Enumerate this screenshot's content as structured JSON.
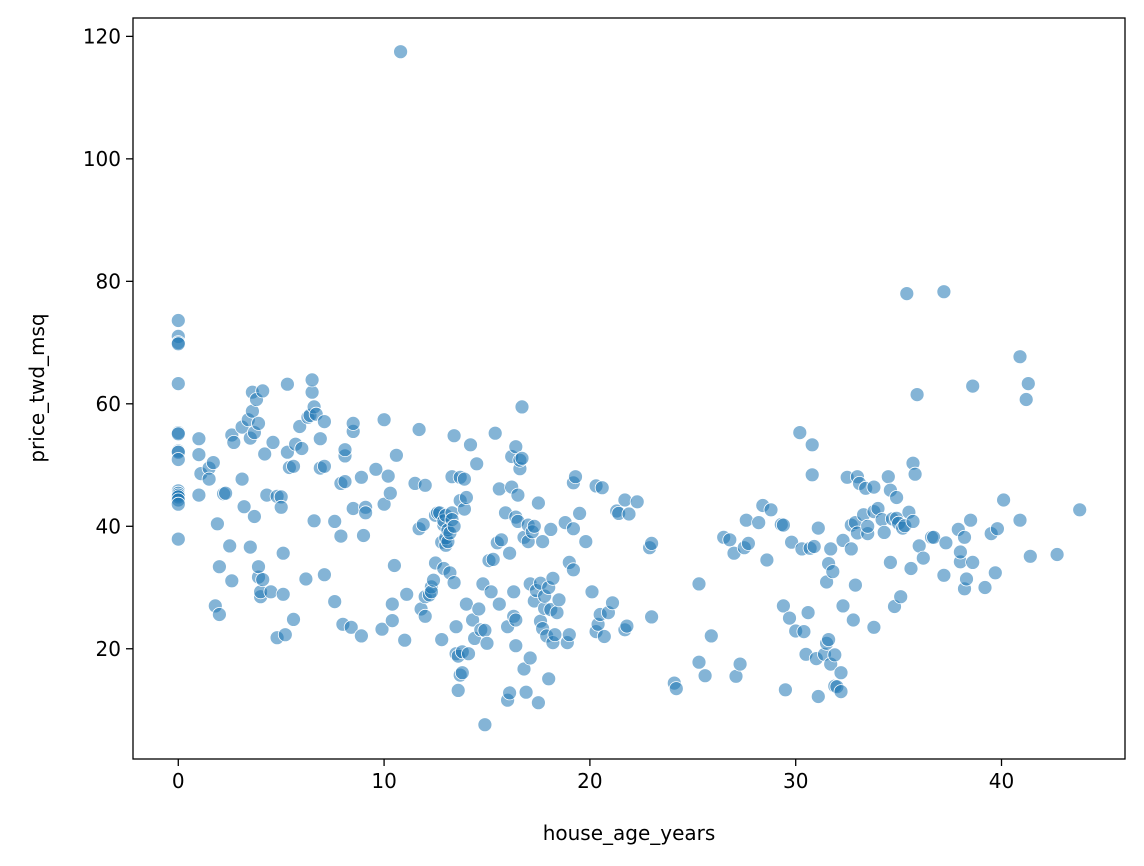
{
  "chart_data": {
    "type": "scatter",
    "title": "",
    "xlabel": "house_age_years",
    "ylabel": "price_twd_msq",
    "xlim": [
      -2.2,
      46.0
    ],
    "ylim": [
      2.0,
      123.0
    ],
    "xticks": [
      0,
      10,
      20,
      30,
      40
    ],
    "yticks": [
      20,
      40,
      60,
      80,
      100,
      120
    ],
    "grid": false,
    "legend": "none",
    "point_color": "#1f77b4",
    "point_alpha": 0.55,
    "point_edge_color": "#ffffff",
    "points": [
      [
        0,
        73.6
      ],
      [
        0,
        71.0
      ],
      [
        0,
        70.0
      ],
      [
        0,
        69.8
      ],
      [
        0,
        63.3
      ],
      [
        0,
        55.3
      ],
      [
        0,
        55.1
      ],
      [
        0,
        52.3
      ],
      [
        0,
        52.1
      ],
      [
        0,
        50.9
      ],
      [
        0,
        45.8
      ],
      [
        0,
        45.4
      ],
      [
        0,
        45.1
      ],
      [
        0,
        44.8
      ],
      [
        0,
        44.3
      ],
      [
        0,
        43.6
      ],
      [
        0,
        37.9
      ],
      [
        10.8,
        117.5
      ],
      [
        35.4,
        78.0
      ],
      [
        37.2,
        78.3
      ],
      [
        40.9,
        67.7
      ],
      [
        41.3,
        63.3
      ],
      [
        41.2,
        60.7
      ],
      [
        38.6,
        62.9
      ],
      [
        35.9,
        61.5
      ],
      [
        35.7,
        50.3
      ],
      [
        35.8,
        48.5
      ],
      [
        1.0,
        54.3
      ],
      [
        1.0,
        51.7
      ],
      [
        1.1,
        48.6
      ],
      [
        1.0,
        45.1
      ],
      [
        1.5,
        49.5
      ],
      [
        1.5,
        47.7
      ],
      [
        1.7,
        50.4
      ],
      [
        1.8,
        27.0
      ],
      [
        1.9,
        40.4
      ],
      [
        2.0,
        33.4
      ],
      [
        2.0,
        25.6
      ],
      [
        2.2,
        45.3
      ],
      [
        2.3,
        45.4
      ],
      [
        2.5,
        36.8
      ],
      [
        2.6,
        31.1
      ],
      [
        2.6,
        54.9
      ],
      [
        2.7,
        53.7
      ],
      [
        3.1,
        47.7
      ],
      [
        3.1,
        56.2
      ],
      [
        3.2,
        43.2
      ],
      [
        3.4,
        57.4
      ],
      [
        3.5,
        54.4
      ],
      [
        3.5,
        36.6
      ],
      [
        3.6,
        58.8
      ],
      [
        3.6,
        61.9
      ],
      [
        3.7,
        41.6
      ],
      [
        3.7,
        55.3
      ],
      [
        3.8,
        60.7
      ],
      [
        3.9,
        56.8
      ],
      [
        3.9,
        31.7
      ],
      [
        3.9,
        33.4
      ],
      [
        4.0,
        28.5
      ],
      [
        4.0,
        29.3
      ],
      [
        4.1,
        31.3
      ],
      [
        4.1,
        62.1
      ],
      [
        4.2,
        51.8
      ],
      [
        4.3,
        45.1
      ],
      [
        4.5,
        29.3
      ],
      [
        4.6,
        53.7
      ],
      [
        4.8,
        44.9
      ],
      [
        4.8,
        21.8
      ],
      [
        5.0,
        44.8
      ],
      [
        5.0,
        43.1
      ],
      [
        5.1,
        28.9
      ],
      [
        5.1,
        35.6
      ],
      [
        5.2,
        22.3
      ],
      [
        5.3,
        63.2
      ],
      [
        5.3,
        52.1
      ],
      [
        5.4,
        49.6
      ],
      [
        5.6,
        49.8
      ],
      [
        5.6,
        24.8
      ],
      [
        5.7,
        53.4
      ],
      [
        5.9,
        56.3
      ],
      [
        6.0,
        52.7
      ],
      [
        6.2,
        31.4
      ],
      [
        6.3,
        57.8
      ],
      [
        6.4,
        58.1
      ],
      [
        6.5,
        61.9
      ],
      [
        6.5,
        63.9
      ],
      [
        6.6,
        40.9
      ],
      [
        6.6,
        59.5
      ],
      [
        6.7,
        58.3
      ],
      [
        6.9,
        49.5
      ],
      [
        6.9,
        54.3
      ],
      [
        7.1,
        57.1
      ],
      [
        7.1,
        49.8
      ],
      [
        7.1,
        32.1
      ],
      [
        7.6,
        40.8
      ],
      [
        7.6,
        27.7
      ],
      [
        7.9,
        38.4
      ],
      [
        7.9,
        47.0
      ],
      [
        8.0,
        24.0
      ],
      [
        8.1,
        47.3
      ],
      [
        8.1,
        51.5
      ],
      [
        8.1,
        52.5
      ],
      [
        8.4,
        23.5
      ],
      [
        8.5,
        55.5
      ],
      [
        8.5,
        56.8
      ],
      [
        8.5,
        42.9
      ],
      [
        8.9,
        22.1
      ],
      [
        8.9,
        48.0
      ],
      [
        9.0,
        38.5
      ],
      [
        9.1,
        43.1
      ],
      [
        9.1,
        42.2
      ],
      [
        9.6,
        49.3
      ],
      [
        9.9,
        23.2
      ],
      [
        10.0,
        57.4
      ],
      [
        10.0,
        43.6
      ],
      [
        10.2,
        48.2
      ],
      [
        10.3,
        45.4
      ],
      [
        10.4,
        24.6
      ],
      [
        10.4,
        27.3
      ],
      [
        10.5,
        33.6
      ],
      [
        10.6,
        51.6
      ],
      [
        11.0,
        21.4
      ],
      [
        11.1,
        28.9
      ],
      [
        11.5,
        47.0
      ],
      [
        11.7,
        39.6
      ],
      [
        11.7,
        55.8
      ],
      [
        11.8,
        26.5
      ],
      [
        11.9,
        40.3
      ],
      [
        12.0,
        46.7
      ],
      [
        12.0,
        25.3
      ],
      [
        12.0,
        28.5
      ],
      [
        12.2,
        28.8
      ],
      [
        12.3,
        30.1
      ],
      [
        12.3,
        29.3
      ],
      [
        12.4,
        31.2
      ],
      [
        12.5,
        34.0
      ],
      [
        12.5,
        41.8
      ],
      [
        12.6,
        42.2
      ],
      [
        12.7,
        42.2
      ],
      [
        12.8,
        37.4
      ],
      [
        12.8,
        21.5
      ],
      [
        12.9,
        40.2
      ],
      [
        12.9,
        40.9
      ],
      [
        12.9,
        33.1
      ],
      [
        13.0,
        41.8
      ],
      [
        13.0,
        36.9
      ],
      [
        13.0,
        38.1
      ],
      [
        13.1,
        37.5
      ],
      [
        13.1,
        39.4
      ],
      [
        13.2,
        32.4
      ],
      [
        13.2,
        38.9
      ],
      [
        13.3,
        48.1
      ],
      [
        13.3,
        42.2
      ],
      [
        13.3,
        41.1
      ],
      [
        13.4,
        30.8
      ],
      [
        13.4,
        54.8
      ],
      [
        13.4,
        40.0
      ],
      [
        13.5,
        23.6
      ],
      [
        13.5,
        19.2
      ],
      [
        13.6,
        18.8
      ],
      [
        13.6,
        13.2
      ],
      [
        13.7,
        15.7
      ],
      [
        13.7,
        44.2
      ],
      [
        13.7,
        48.0
      ],
      [
        13.8,
        16.1
      ],
      [
        13.8,
        19.5
      ],
      [
        13.9,
        47.7
      ],
      [
        13.9,
        42.8
      ],
      [
        14.0,
        27.3
      ],
      [
        14.0,
        44.7
      ],
      [
        14.1,
        19.2
      ],
      [
        14.2,
        53.3
      ],
      [
        14.3,
        24.7
      ],
      [
        14.4,
        21.7
      ],
      [
        14.5,
        50.2
      ],
      [
        14.6,
        26.5
      ],
      [
        14.7,
        23.1
      ],
      [
        14.8,
        30.6
      ],
      [
        14.9,
        23.0
      ],
      [
        14.9,
        7.6
      ],
      [
        15.0,
        20.9
      ],
      [
        15.1,
        34.4
      ],
      [
        15.2,
        29.3
      ],
      [
        15.3,
        34.6
      ],
      [
        15.4,
        55.2
      ],
      [
        15.5,
        37.3
      ],
      [
        15.6,
        46.1
      ],
      [
        15.6,
        27.3
      ],
      [
        15.7,
        37.8
      ],
      [
        15.9,
        42.2
      ],
      [
        16.0,
        23.6
      ],
      [
        16.0,
        11.6
      ],
      [
        16.1,
        35.6
      ],
      [
        16.1,
        12.8
      ],
      [
        16.2,
        51.4
      ],
      [
        16.2,
        46.4
      ],
      [
        16.3,
        25.3
      ],
      [
        16.3,
        29.3
      ],
      [
        16.4,
        20.5
      ],
      [
        16.4,
        24.7
      ],
      [
        16.4,
        53.0
      ],
      [
        16.4,
        41.5
      ],
      [
        16.5,
        45.1
      ],
      [
        16.5,
        40.8
      ],
      [
        16.6,
        49.4
      ],
      [
        16.6,
        50.8
      ],
      [
        16.7,
        51.1
      ],
      [
        16.7,
        59.5
      ],
      [
        16.8,
        16.7
      ],
      [
        16.8,
        38.2
      ],
      [
        16.9,
        12.9
      ],
      [
        17.0,
        37.5
      ],
      [
        17.0,
        40.2
      ],
      [
        17.1,
        30.6
      ],
      [
        17.1,
        18.5
      ],
      [
        17.2,
        39.1
      ],
      [
        17.3,
        40.0
      ],
      [
        17.3,
        27.8
      ],
      [
        17.4,
        29.5
      ],
      [
        17.5,
        43.8
      ],
      [
        17.5,
        11.2
      ],
      [
        17.6,
        30.7
      ],
      [
        17.6,
        24.5
      ],
      [
        17.7,
        23.3
      ],
      [
        17.7,
        37.5
      ],
      [
        17.8,
        26.6
      ],
      [
        17.8,
        28.6
      ],
      [
        17.9,
        22.1
      ],
      [
        18.0,
        30.0
      ],
      [
        18.0,
        15.1
      ],
      [
        18.1,
        26.4
      ],
      [
        18.1,
        39.5
      ],
      [
        18.2,
        21.0
      ],
      [
        18.2,
        31.5
      ],
      [
        18.3,
        22.3
      ],
      [
        18.4,
        25.9
      ],
      [
        18.5,
        28.0
      ],
      [
        18.8,
        40.6
      ],
      [
        18.9,
        21.0
      ],
      [
        19.0,
        22.3
      ],
      [
        19.0,
        34.1
      ],
      [
        19.2,
        32.9
      ],
      [
        19.2,
        39.6
      ],
      [
        19.2,
        47.1
      ],
      [
        19.3,
        48.1
      ],
      [
        19.5,
        42.1
      ],
      [
        19.8,
        37.5
      ],
      [
        20.1,
        29.3
      ],
      [
        20.3,
        22.8
      ],
      [
        20.3,
        46.6
      ],
      [
        20.4,
        24.0
      ],
      [
        20.5,
        25.6
      ],
      [
        20.6,
        46.3
      ],
      [
        20.7,
        22.0
      ],
      [
        20.9,
        25.9
      ],
      [
        21.1,
        27.5
      ],
      [
        21.3,
        42.5
      ],
      [
        21.4,
        42.1
      ],
      [
        21.7,
        23.1
      ],
      [
        21.7,
        44.3
      ],
      [
        21.8,
        23.7
      ],
      [
        21.9,
        42.0
      ],
      [
        22.3,
        44.0
      ],
      [
        22.9,
        36.5
      ],
      [
        23.0,
        37.2
      ],
      [
        23.0,
        25.2
      ],
      [
        24.1,
        14.4
      ],
      [
        24.2,
        13.5
      ],
      [
        25.3,
        30.6
      ],
      [
        25.3,
        17.8
      ],
      [
        25.6,
        15.6
      ],
      [
        25.9,
        22.1
      ],
      [
        26.5,
        38.2
      ],
      [
        26.8,
        37.8
      ],
      [
        27.0,
        35.6
      ],
      [
        27.1,
        15.5
      ],
      [
        27.3,
        17.5
      ],
      [
        27.5,
        36.5
      ],
      [
        27.6,
        41.0
      ],
      [
        27.7,
        37.2
      ],
      [
        28.2,
        40.6
      ],
      [
        28.4,
        43.4
      ],
      [
        28.6,
        34.5
      ],
      [
        28.8,
        42.7
      ],
      [
        29.3,
        40.3
      ],
      [
        29.4,
        27.0
      ],
      [
        29.4,
        40.2
      ],
      [
        29.5,
        13.3
      ],
      [
        29.7,
        25.0
      ],
      [
        29.8,
        37.4
      ],
      [
        30.0,
        22.9
      ],
      [
        30.2,
        55.3
      ],
      [
        30.3,
        36.3
      ],
      [
        30.4,
        22.8
      ],
      [
        30.5,
        19.1
      ],
      [
        30.6,
        25.9
      ],
      [
        30.7,
        36.4
      ],
      [
        30.8,
        53.3
      ],
      [
        30.8,
        48.4
      ],
      [
        30.9,
        36.7
      ],
      [
        31.0,
        18.4
      ],
      [
        31.1,
        12.2
      ],
      [
        31.1,
        39.7
      ],
      [
        31.4,
        19.1
      ],
      [
        31.5,
        30.9
      ],
      [
        31.5,
        20.9
      ],
      [
        31.6,
        21.5
      ],
      [
        31.6,
        33.9
      ],
      [
        31.7,
        17.5
      ],
      [
        31.7,
        36.3
      ],
      [
        31.8,
        32.6
      ],
      [
        31.9,
        19.0
      ],
      [
        31.9,
        13.9
      ],
      [
        32.0,
        13.8
      ],
      [
        32.2,
        16.1
      ],
      [
        32.2,
        13.0
      ],
      [
        32.3,
        37.7
      ],
      [
        32.3,
        27.0
      ],
      [
        32.5,
        48.0
      ],
      [
        32.7,
        40.2
      ],
      [
        32.7,
        36.3
      ],
      [
        32.8,
        24.7
      ],
      [
        32.9,
        40.6
      ],
      [
        32.9,
        30.4
      ],
      [
        33.0,
        48.1
      ],
      [
        33.0,
        38.9
      ],
      [
        33.1,
        47.0
      ],
      [
        33.3,
        41.9
      ],
      [
        33.4,
        46.2
      ],
      [
        33.5,
        38.8
      ],
      [
        33.5,
        40.0
      ],
      [
        33.8,
        46.4
      ],
      [
        33.8,
        42.4
      ],
      [
        33.8,
        23.5
      ],
      [
        34.0,
        42.9
      ],
      [
        34.2,
        41.1
      ],
      [
        34.3,
        39.0
      ],
      [
        34.5,
        48.1
      ],
      [
        34.6,
        34.1
      ],
      [
        34.6,
        45.9
      ],
      [
        34.7,
        41.2
      ],
      [
        34.8,
        26.9
      ],
      [
        34.9,
        41.3
      ],
      [
        34.9,
        44.7
      ],
      [
        35.0,
        40.5
      ],
      [
        35.1,
        28.5
      ],
      [
        35.2,
        39.7
      ],
      [
        35.3,
        40.1
      ],
      [
        35.5,
        42.3
      ],
      [
        35.6,
        33.1
      ],
      [
        35.7,
        40.8
      ],
      [
        36.0,
        36.8
      ],
      [
        36.2,
        34.8
      ],
      [
        36.6,
        38.2
      ],
      [
        36.7,
        38.2
      ],
      [
        37.2,
        32.0
      ],
      [
        37.3,
        37.3
      ],
      [
        37.9,
        39.5
      ],
      [
        38.0,
        34.2
      ],
      [
        38.0,
        35.8
      ],
      [
        38.2,
        38.2
      ],
      [
        38.2,
        29.8
      ],
      [
        38.3,
        31.4
      ],
      [
        38.5,
        41.0
      ],
      [
        38.6,
        34.1
      ],
      [
        39.2,
        30.0
      ],
      [
        39.5,
        38.8
      ],
      [
        39.7,
        32.4
      ],
      [
        39.8,
        39.6
      ],
      [
        40.1,
        44.3
      ],
      [
        40.9,
        41.0
      ],
      [
        41.4,
        35.1
      ],
      [
        42.7,
        35.4
      ],
      [
        43.8,
        42.7
      ]
    ]
  }
}
